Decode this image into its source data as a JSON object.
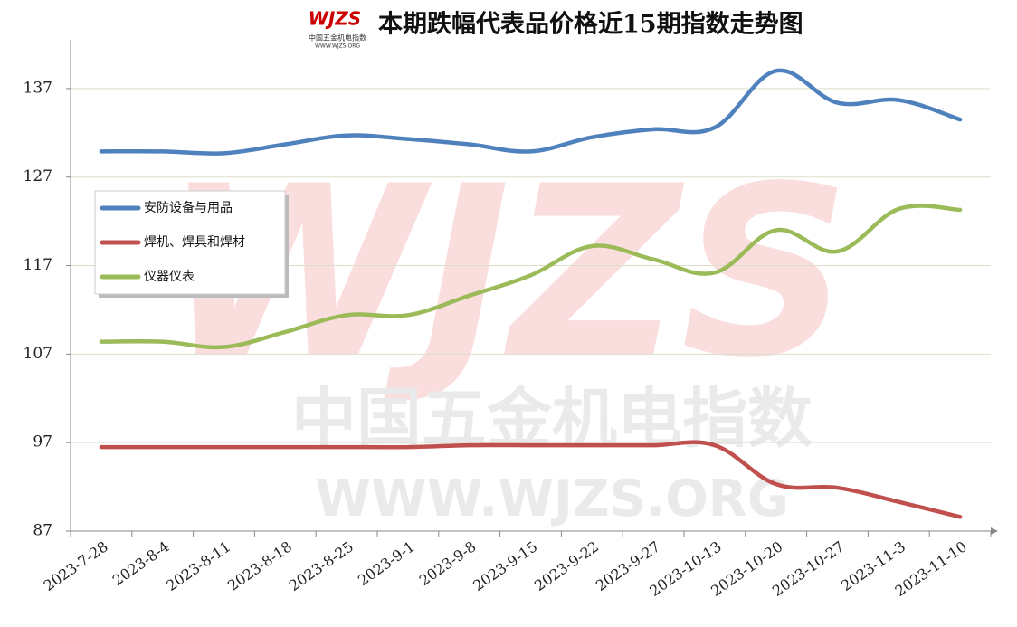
{
  "chart_data": {
    "type": "line",
    "title": "本期跌幅代表品价格近15期指数走势图",
    "logo": {
      "mark": "WJZS",
      "name": "中国五金机电指数",
      "url": "WWW.WJZS.ORG"
    },
    "watermark": {
      "mark": "WJZS",
      "name": "中国五金机电指数",
      "url": "WWW.WJZS.ORG"
    },
    "categories": [
      "2023-7-28",
      "2023-8-4",
      "2023-8-11",
      "2023-8-18",
      "2023-8-25",
      "2023-9-1",
      "2023-9-8",
      "2023-9-15",
      "2023-9-22",
      "2023-9-27",
      "2023-10-13",
      "2023-10-20",
      "2023-10-27",
      "2023-11-3",
      "2023-11-10"
    ],
    "series": [
      {
        "name": "安防设备与用品",
        "color": "#4f81bd",
        "values": [
          129.9,
          129.9,
          129.7,
          130.7,
          131.7,
          131.3,
          130.7,
          129.9,
          131.5,
          132.4,
          132.6,
          139.0,
          135.4,
          135.7,
          133.5
        ]
      },
      {
        "name": "焊机、焊具和焊材",
        "color": "#c0504d",
        "values": [
          96.5,
          96.5,
          96.5,
          96.5,
          96.5,
          96.5,
          96.7,
          96.7,
          96.7,
          96.7,
          96.7,
          92.3,
          91.9,
          90.3,
          88.6
        ]
      },
      {
        "name": "仪器仪表",
        "color": "#9bbb59",
        "values": [
          108.4,
          108.4,
          107.8,
          109.5,
          111.4,
          111.4,
          113.6,
          115.9,
          119.2,
          117.7,
          116.2,
          121.0,
          118.6,
          123.4,
          123.3
        ]
      }
    ],
    "ylim": [
      87,
      142
    ],
    "yticks": [
      87,
      97,
      107,
      117,
      127,
      137
    ],
    "grid": true,
    "smooth": true,
    "legend": "left"
  }
}
